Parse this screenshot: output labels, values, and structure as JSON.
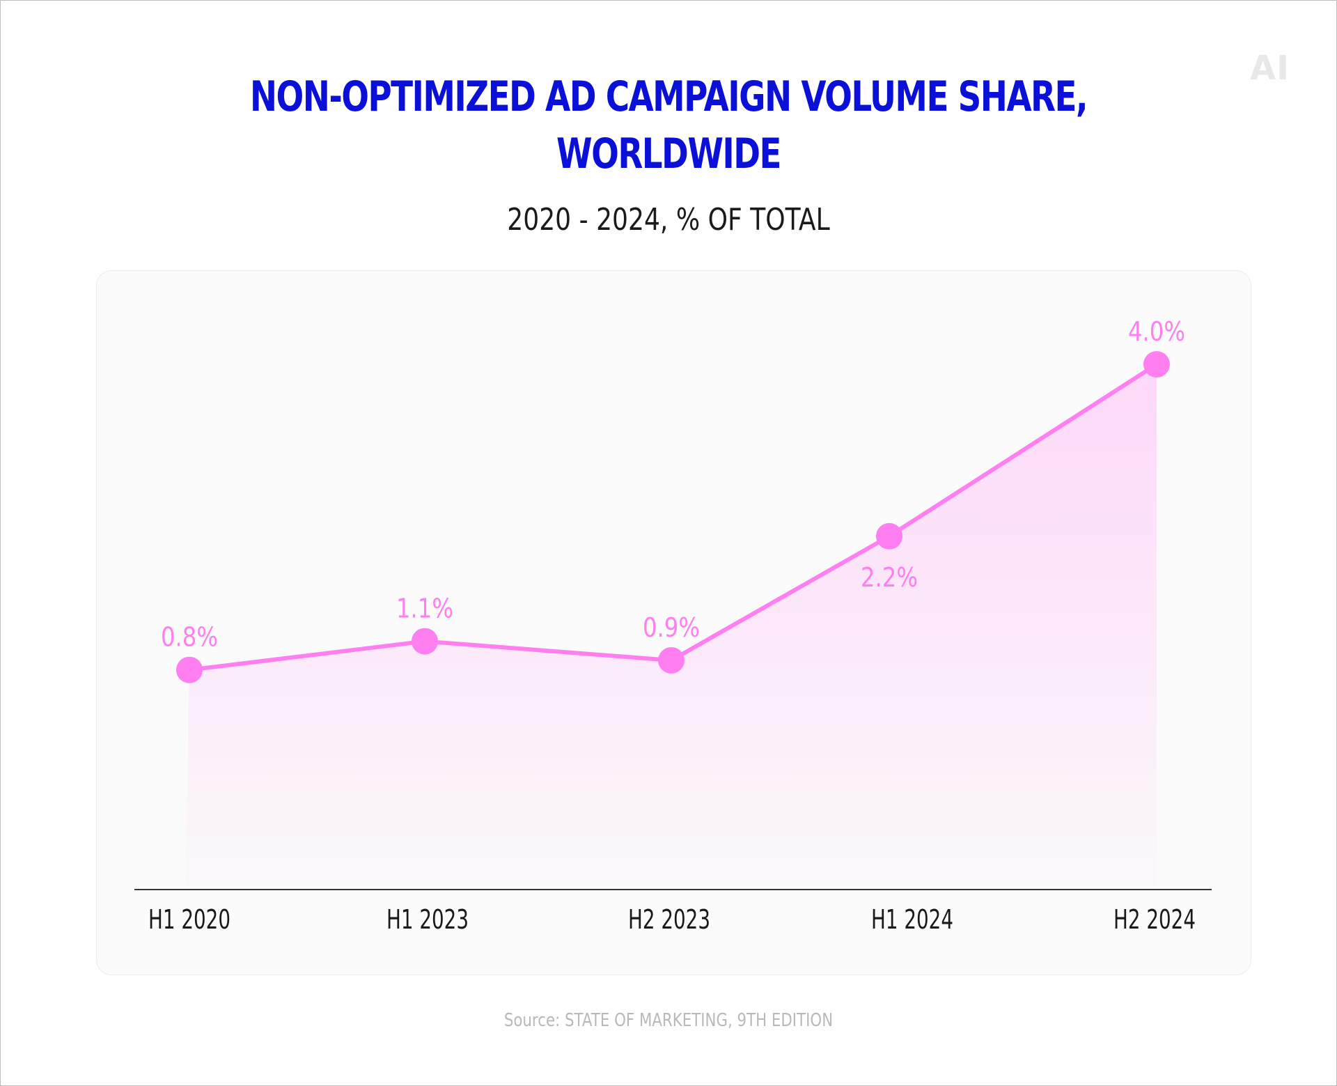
{
  "logo": "AI",
  "chart_data": {
    "type": "line",
    "title_lines": [
      "NON-OPTIMIZED AD CAMPAIGN VOLUME SHARE,",
      "WORLDWIDE"
    ],
    "subtitle": "2020 - 2024, % OF TOTAL",
    "categories": [
      "H1 2020",
      "H1 2023",
      "H2 2023",
      "H1 2024",
      "H2 2024"
    ],
    "values": [
      0.8,
      1.1,
      0.9,
      2.2,
      4.0
    ],
    "data_labels": [
      "0.8%",
      "1.1%",
      "0.9%",
      "2.2%",
      "4.0%"
    ],
    "label_positions": [
      "above",
      "above",
      "above",
      "below",
      "above"
    ],
    "ylim": [
      -1.5,
      4.0
    ],
    "grid": false,
    "fill": "gradient-area",
    "colors": {
      "line": "#ff7ef0",
      "marker": "#ff7ef0",
      "label": "#ff7ef0",
      "title": "#0b10d9",
      "axis": "#333333"
    }
  },
  "source": "Source: STATE OF MARKETING, 9TH EDITION"
}
